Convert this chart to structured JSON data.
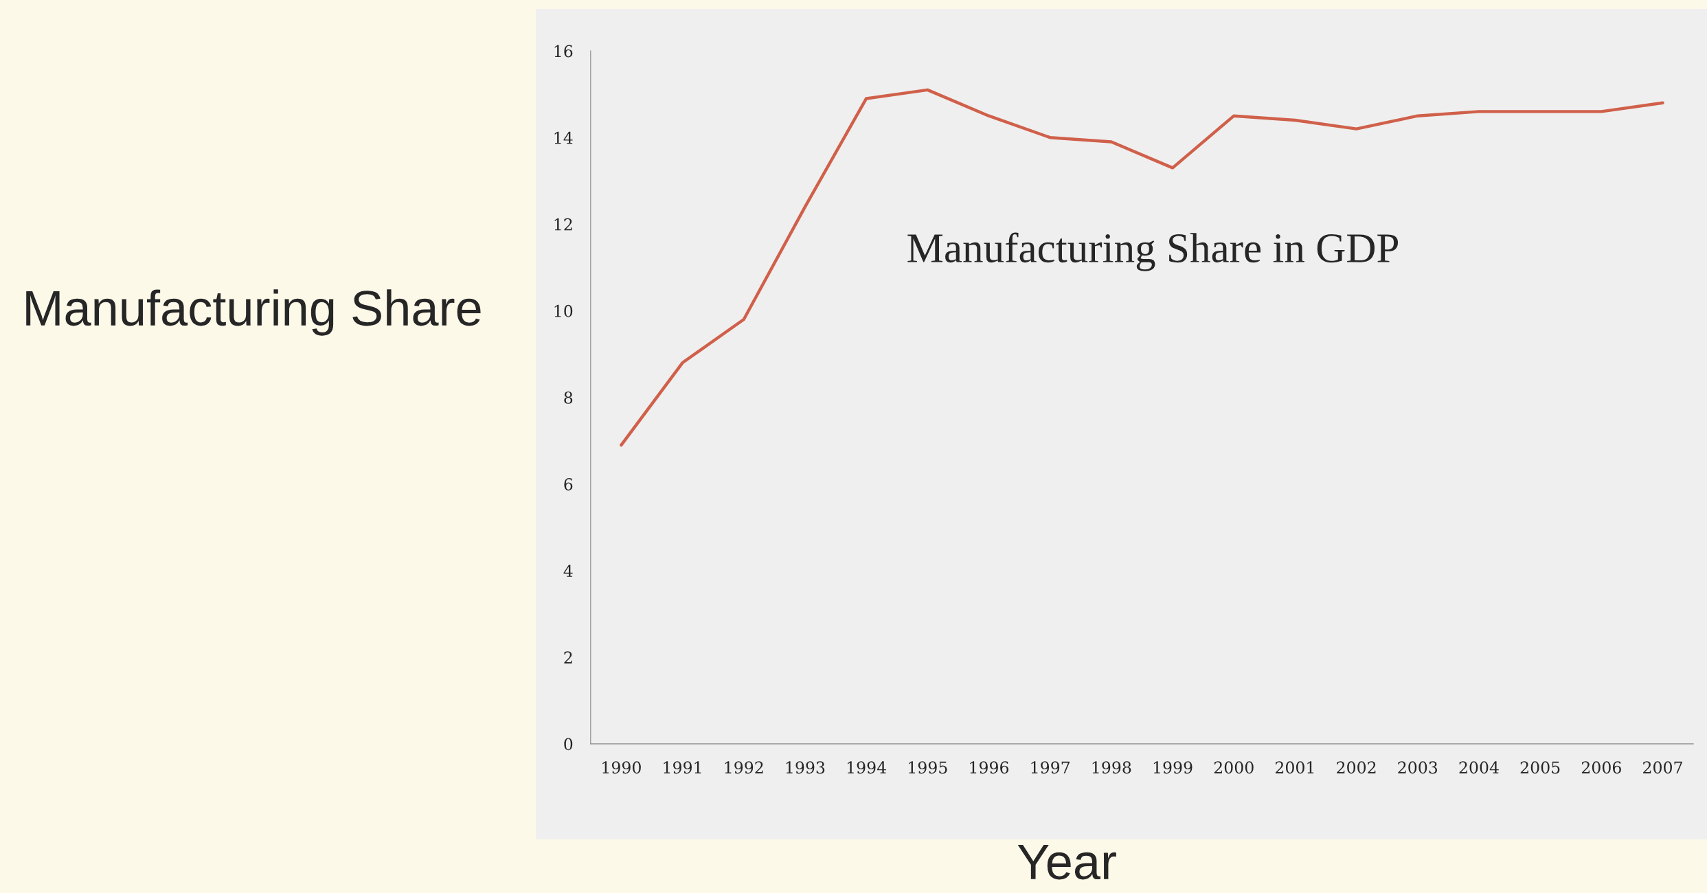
{
  "chart_data": {
    "type": "line",
    "title": "Manufacturing Share in GDP",
    "xlabel": "Year",
    "ylabel": "Manufacturing Share",
    "categories": [
      "1990",
      "1991",
      "1992",
      "1993",
      "1994",
      "1995",
      "1996",
      "1997",
      "1998",
      "1999",
      "2000",
      "2001",
      "2002",
      "2003",
      "2004",
      "2005",
      "2006",
      "2007"
    ],
    "series": [
      {
        "color": "#d0604a",
        "values": [
          6.9,
          8.8,
          9.8,
          12.4,
          14.9,
          15.1,
          14.5,
          14.0,
          13.9,
          13.3,
          14.5,
          14.4,
          14.2,
          14.5,
          14.6,
          14.6,
          14.6,
          14.8
        ]
      }
    ],
    "ylim": [
      0,
      16
    ],
    "yticks": [
      0,
      2,
      4,
      6,
      8,
      10,
      12,
      14,
      16
    ],
    "grid": false,
    "marker": "none",
    "line_style": "solid"
  }
}
